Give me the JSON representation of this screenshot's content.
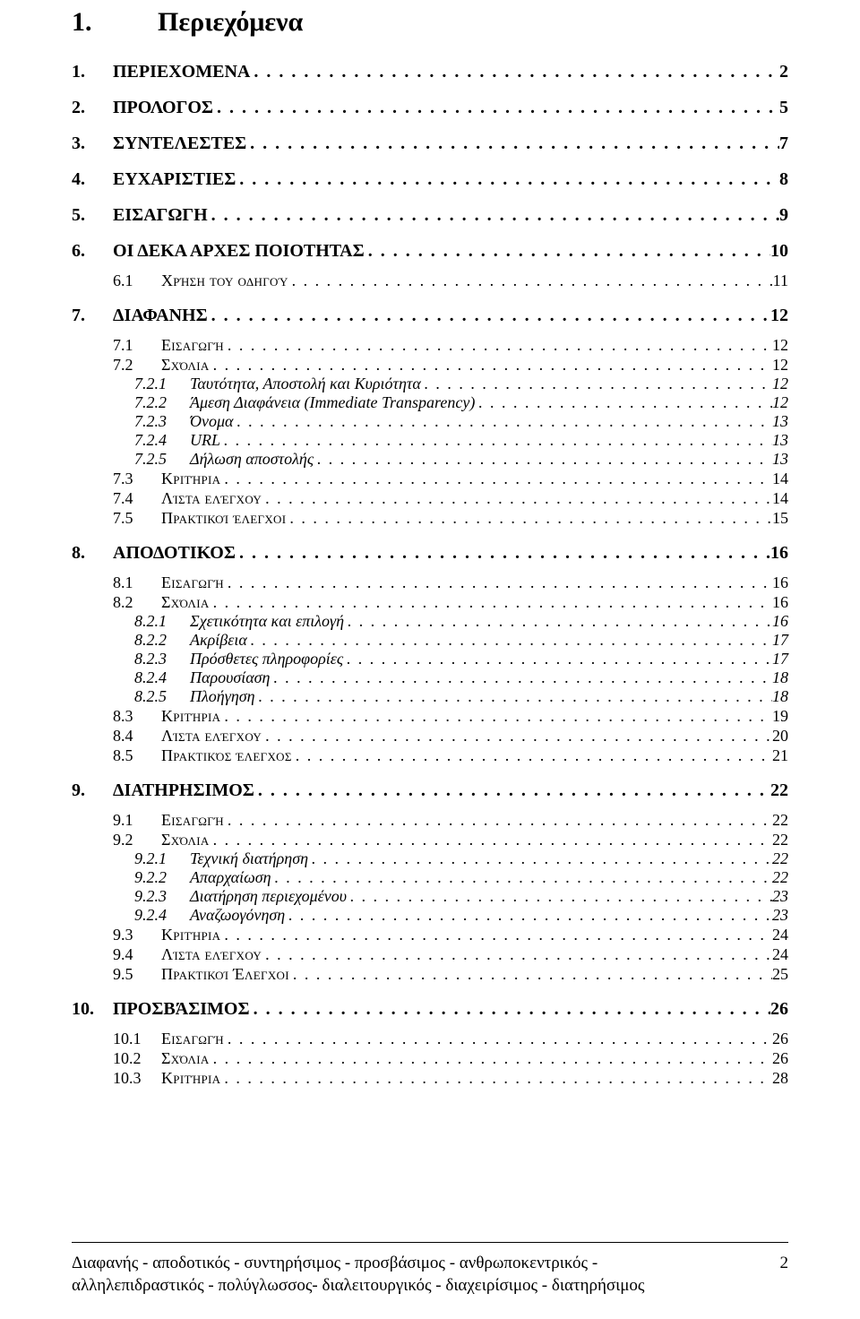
{
  "title": {
    "num": "1.",
    "text": "Περιεχόμενα"
  },
  "toc": [
    {
      "lvl": 1,
      "num": "1.",
      "text": "ΠΕΡΙΕΧΟΜΕΝΑ",
      "page": "2"
    },
    {
      "lvl": 1,
      "num": "2.",
      "text": "ΠΡΟΛΟΓΟΣ",
      "page": "5"
    },
    {
      "lvl": 1,
      "num": "3.",
      "text": "ΣΥΝΤΕΛΕΣΤΕΣ",
      "page": "7"
    },
    {
      "lvl": 1,
      "num": "4.",
      "text": "ΕΥΧΑΡΙΣΤΙΕΣ",
      "page": "8"
    },
    {
      "lvl": 1,
      "num": "5.",
      "text": "ΕΙΣΑΓΩΓΗ",
      "page": "9"
    },
    {
      "lvl": 1,
      "num": "6.",
      "text": "ΟΙ ΔΕΚΑ ΑΡΧΕΣ ΠΟΙΟΤΗΤΑΣ",
      "page": "10"
    },
    {
      "lvl": 2,
      "num": "6.1",
      "text": "Χρήση του οδηγού",
      "page": "11",
      "groupStart": true
    },
    {
      "lvl": 1,
      "num": "7.",
      "text": "ΔΙΑΦΑΝΗΣ",
      "page": "12"
    },
    {
      "lvl": 2,
      "num": "7.1",
      "text": "Εισαγωγή",
      "page": "12",
      "groupStart": true
    },
    {
      "lvl": 2,
      "num": "7.2",
      "text": "Σχόλια",
      "page": "12"
    },
    {
      "lvl": 3,
      "num": "7.2.1",
      "text": "Ταυτότητα, Αποστολή και Κυριότητα",
      "page": "12"
    },
    {
      "lvl": 3,
      "num": "7.2.2",
      "text": "Άμεση Διαφάνεια (Immediate Transparency)",
      "page": "12"
    },
    {
      "lvl": 3,
      "num": "7.2.3",
      "text": "Όνομα",
      "page": "13"
    },
    {
      "lvl": 3,
      "num": "7.2.4",
      "text": "URL",
      "page": "13"
    },
    {
      "lvl": 3,
      "num": "7.2.5",
      "text": "Δήλωση αποστολής",
      "page": "13"
    },
    {
      "lvl": 2,
      "num": "7.3",
      "text": "Κριτήρια",
      "page": "14"
    },
    {
      "lvl": 2,
      "num": "7.4",
      "text": "Λίστα ελέγχου",
      "page": "14"
    },
    {
      "lvl": 2,
      "num": "7.5",
      "text": "Πρακτικοί έλεγχοι",
      "page": "15"
    },
    {
      "lvl": 1,
      "num": "8.",
      "text": "ΑΠΟΔΟΤΙΚΟΣ",
      "page": "16"
    },
    {
      "lvl": 2,
      "num": "8.1",
      "text": "Εισαγωγή",
      "page": "16",
      "groupStart": true
    },
    {
      "lvl": 2,
      "num": "8.2",
      "text": "Σχόλια",
      "page": "16"
    },
    {
      "lvl": 3,
      "num": "8.2.1",
      "text": "Σχετικότητα και επιλογή",
      "page": "16"
    },
    {
      "lvl": 3,
      "num": "8.2.2",
      "text": "Ακρίβεια",
      "page": "17"
    },
    {
      "lvl": 3,
      "num": "8.2.3",
      "text": "Πρόσθετες πληροφορίες",
      "page": "17"
    },
    {
      "lvl": 3,
      "num": "8.2.4",
      "text": "Παρουσίαση",
      "page": "18"
    },
    {
      "lvl": 3,
      "num": "8.2.5",
      "text": "Πλοήγηση",
      "page": "18"
    },
    {
      "lvl": 2,
      "num": "8.3",
      "text": "Κριτήρια",
      "page": "19"
    },
    {
      "lvl": 2,
      "num": "8.4",
      "text": "Λίστα ελέγχου",
      "page": "20"
    },
    {
      "lvl": 2,
      "num": "8.5",
      "text": "Πρακτικός έλεγχος",
      "page": "21"
    },
    {
      "lvl": 1,
      "num": "9.",
      "text": "ΔΙΑΤΗΡΗΣΙΜΟΣ",
      "page": "22"
    },
    {
      "lvl": 2,
      "num": "9.1",
      "text": "Εισαγωγή",
      "page": "22",
      "groupStart": true
    },
    {
      "lvl": 2,
      "num": "9.2",
      "text": "Σχόλια",
      "page": "22"
    },
    {
      "lvl": 3,
      "num": "9.2.1",
      "text": "Τεχνική διατήρηση",
      "page": "22"
    },
    {
      "lvl": 3,
      "num": "9.2.2",
      "text": "Απαρχαίωση",
      "page": "22"
    },
    {
      "lvl": 3,
      "num": "9.2.3",
      "text": "Διατήρηση περιεχομένου",
      "page": "23"
    },
    {
      "lvl": 3,
      "num": "9.2.4",
      "text": "Αναζωογόνηση",
      "page": "23"
    },
    {
      "lvl": 2,
      "num": "9.3",
      "text": "Κριτήρια",
      "page": "24"
    },
    {
      "lvl": 2,
      "num": "9.4",
      "text": "Λίστα ελέγχου",
      "page": "24"
    },
    {
      "lvl": 2,
      "num": "9.5",
      "text": "Πρακτικοί Έλεγχοι",
      "page": "25"
    },
    {
      "lvl": 1,
      "num": "10.",
      "text": "ΠΡΟΣΒΆΣΙΜΟΣ",
      "page": "26"
    },
    {
      "lvl": 2,
      "num": "10.1",
      "text": "Εισαγωγή",
      "page": "26",
      "groupStart": true
    },
    {
      "lvl": 2,
      "num": "10.2",
      "text": "Σχόλια",
      "page": "26"
    },
    {
      "lvl": 2,
      "num": "10.3",
      "text": "Κριτήρια",
      "page": "28"
    }
  ],
  "footer": {
    "line1": "Διαφανής - αποδοτικός - συντηρήσιμος - προσβάσιμος - ανθρωποκεντρικός -",
    "line2": "αλληλεπιδραστικός - πολύγλωσσος- διαλειτουργικός - διαχειρίσιμος - διατηρήσιμος",
    "page": "2"
  },
  "dotsFill": ". . . . . . . . . . . . . . . . . . . . . . . . . . . . . . . . . . . . . . . . . . . . . . . . . . . . . . . . . . . . . . . . . . . . . . . . . . . . . . . . . . . . . . . . . . . . . . . . . . . . . . . . . . . . . . . . . . . . . . . . . . . . . . . . . . . . . . . . . . . . . . . . . . . . . . . . . . . . . . . . . . . . . . . . . . . . . . . . . . . ."
}
